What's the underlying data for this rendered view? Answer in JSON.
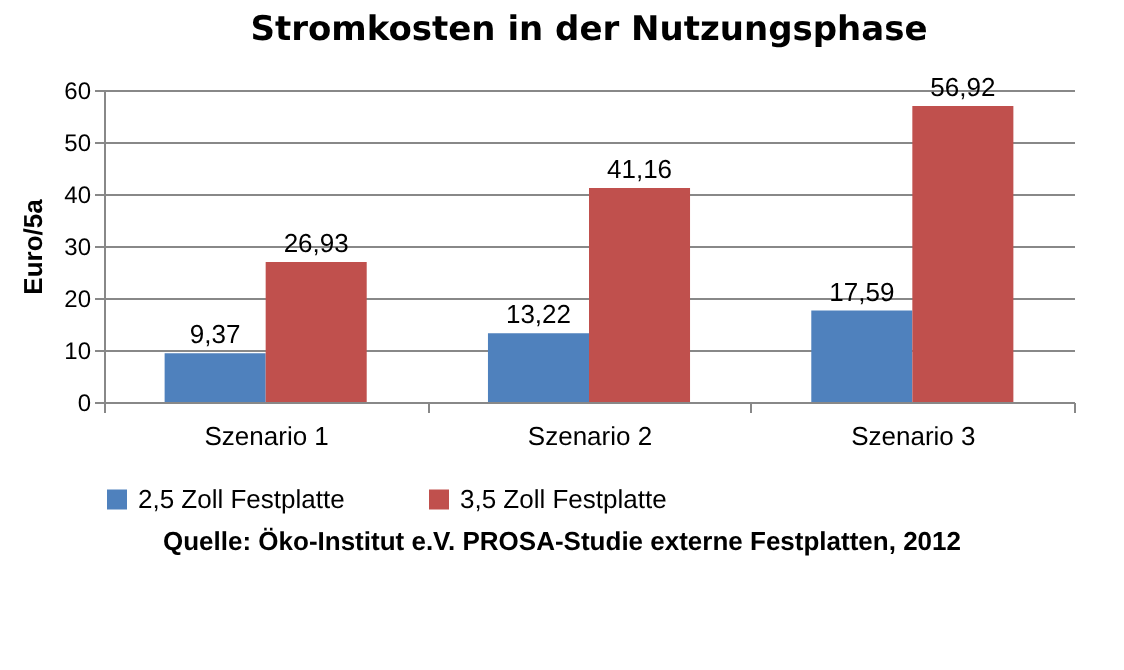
{
  "chart_data": {
    "type": "bar",
    "title": "Stromkosten in der Nutzungsphase",
    "ylabel": "Euro/5a",
    "categories": [
      "Szenario 1",
      "Szenario 2",
      "Szenario 3"
    ],
    "series": [
      {
        "name": "2,5 Zoll Festplatte",
        "color": "#4f81bd",
        "values": [
          9.37,
          13.22,
          17.59
        ],
        "value_labels": [
          "9,37",
          "13,22",
          "17,59"
        ]
      },
      {
        "name": "3,5 Zoll Festplatte",
        "color": "#c0504d",
        "values": [
          26.93,
          41.16,
          56.92
        ],
        "value_labels": [
          "26,93",
          "41,16",
          "56,92"
        ]
      }
    ],
    "ylim": [
      0,
      60
    ],
    "yticks": [
      0,
      10,
      20,
      30,
      40,
      50,
      60
    ],
    "grid": "y",
    "legend": "bottom",
    "annotations": [
      "Quelle: Öko-Institut e.V. PROSA-Studie externe Festplatten, 2012"
    ]
  }
}
